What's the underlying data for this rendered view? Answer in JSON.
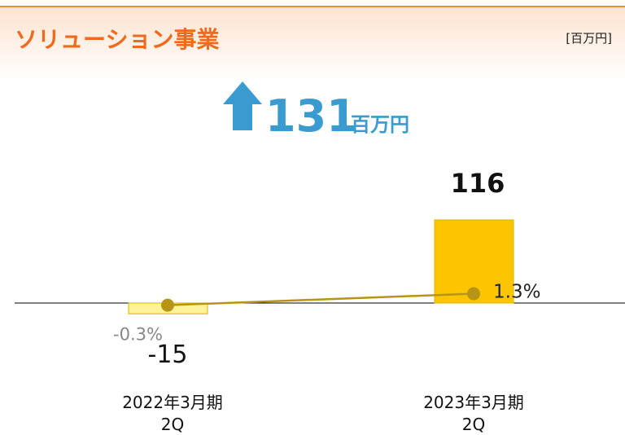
{
  "chart_data": {
    "type": "bar",
    "title": "ソリューション事業",
    "unit": "[百万円]",
    "highlight": {
      "value": "131",
      "unit": "百万円"
    },
    "categories": [
      [
        "2022年3月期",
        "2Q"
      ],
      [
        "2023年3月期",
        "2Q"
      ]
    ],
    "ylim": [
      -50,
      150
    ],
    "y2lim": [
      -5,
      15
    ],
    "series": [
      {
        "type": "bar",
        "colors": [
          "#fff39a",
          "#fdc400"
        ],
        "values": [
          -15,
          116
        ]
      },
      {
        "type": "line",
        "axis": "y2",
        "color": "#b89414",
        "values": [
          -0.3,
          1.3
        ],
        "value_labels": [
          "-0.3%",
          "1.3%"
        ]
      }
    ]
  }
}
